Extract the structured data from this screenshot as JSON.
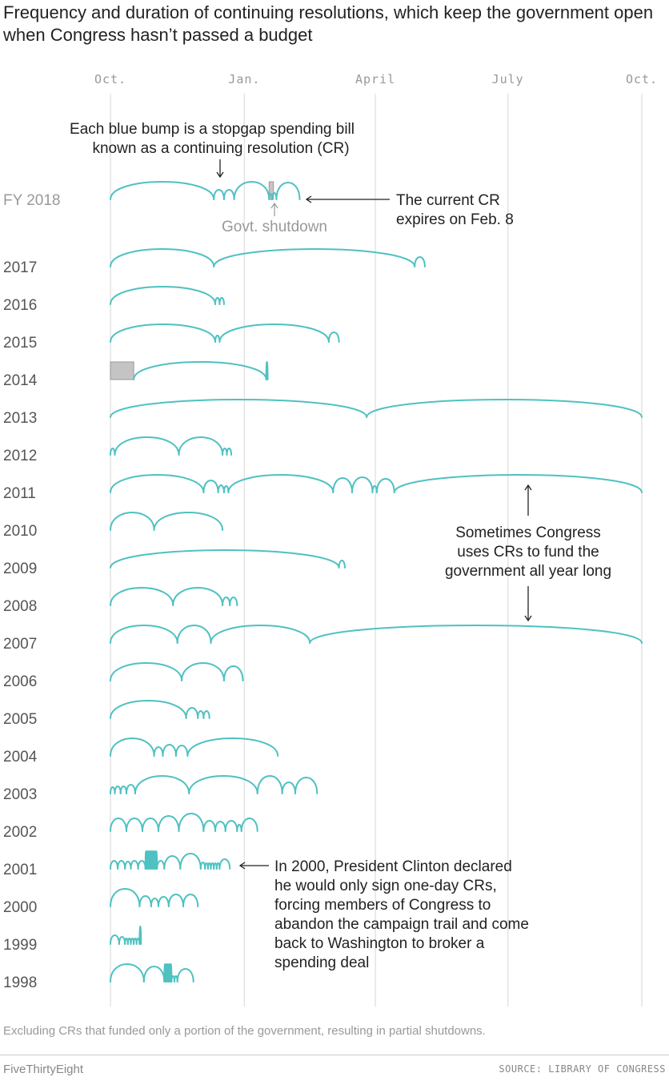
{
  "title": "Frequency and duration of continuing resolutions, which keep the government open when Congress hasn’t passed a budget",
  "footnote": "Excluding CRs that funded only a portion of the government, resulting in partial shutdowns.",
  "brand": "FiveThirtyEight",
  "source": "SOURCE: LIBRARY OF CONGRESS",
  "chart_data": {
    "type": "timeline-arcs",
    "unit": "days since Oct. 1 (start of fiscal year)",
    "xlim": [
      0,
      365
    ],
    "x_ticks": [
      {
        "label": "Oct.",
        "day": 0
      },
      {
        "label": "Jan.",
        "day": 92
      },
      {
        "label": "April",
        "day": 182
      },
      {
        "label": "July",
        "day": 273
      },
      {
        "label": "Oct.",
        "day": 365
      }
    ],
    "colors": {
      "cr": "#4fc1c1",
      "shutdown": "#c4c4c4",
      "grid": "#e4e4e4"
    },
    "rows": [
      {
        "label": "FY 2018",
        "breaks": [
          0,
          71,
          78,
          85,
          109,
          111,
          114,
          130
        ],
        "shutdowns": [
          [
            109,
            112
          ]
        ]
      },
      {
        "label": "2017",
        "breaks": [
          0,
          71,
          209,
          216
        ]
      },
      {
        "label": "2016",
        "breaks": [
          0,
          72,
          75,
          78
        ]
      },
      {
        "label": "2015",
        "breaks": [
          0,
          72,
          75,
          150,
          157
        ]
      },
      {
        "label": "2014",
        "breaks": [
          16,
          107,
          108
        ],
        "shutdowns": [
          [
            0,
            16
          ]
        ]
      },
      {
        "label": "2013",
        "breaks": [
          0,
          176,
          365
        ]
      },
      {
        "label": "2012",
        "breaks": [
          0,
          3,
          47,
          77,
          80,
          83
        ]
      },
      {
        "label": "2011",
        "breaks": [
          0,
          64,
          74,
          78,
          81,
          153,
          166,
          180,
          183,
          195,
          365
        ]
      },
      {
        "label": "2010",
        "breaks": [
          0,
          30,
          77
        ]
      },
      {
        "label": "2009",
        "breaks": [
          0,
          157,
          161
        ]
      },
      {
        "label": "2008",
        "breaks": [
          0,
          43,
          77,
          82,
          87
        ]
      },
      {
        "label": "2007",
        "breaks": [
          0,
          46,
          69,
          137,
          365
        ]
      },
      {
        "label": "2006",
        "breaks": [
          0,
          49,
          78,
          91
        ]
      },
      {
        "label": "2005",
        "breaks": [
          0,
          52,
          60,
          64,
          68
        ]
      },
      {
        "label": "2004",
        "breaks": [
          0,
          30,
          36,
          45,
          53,
          115
        ]
      },
      {
        "label": "2003",
        "breaks": [
          0,
          3,
          7,
          11,
          17,
          54,
          101,
          118,
          127,
          142
        ]
      },
      {
        "label": "2002",
        "breaks": [
          0,
          11,
          22,
          33,
          47,
          64,
          72,
          79,
          87,
          90,
          101
        ]
      },
      {
        "label": "2001",
        "breaks": [
          0,
          5,
          10,
          14,
          19,
          24,
          25,
          26,
          27,
          28,
          29,
          30,
          31,
          32,
          37,
          48,
          62,
          65,
          67,
          69,
          71,
          73,
          75,
          82
        ]
      },
      {
        "label": "2000",
        "breaks": [
          0,
          20,
          28,
          33,
          40,
          50,
          60
        ]
      },
      {
        "label": "1999",
        "breaks": [
          0,
          6,
          10,
          12,
          14,
          16,
          18,
          20,
          21
        ]
      },
      {
        "label": "1998",
        "breaks": [
          0,
          23,
          37,
          38,
          39,
          40,
          41,
          42,
          44,
          46,
          57
        ]
      }
    ],
    "annotations": {
      "bump_note": [
        "Each blue bump is a stopgap spending bill",
        "known as a continuing resolution (CR)"
      ],
      "shutdown_note": "Govt. shutdown",
      "current_note": [
        "The current CR",
        "expires on Feb. 8"
      ],
      "yearlong_note": [
        "Sometimes Congress",
        "uses CRs to fund the",
        "government all year long"
      ],
      "clinton_note": [
        "In 2000, President Clinton declared",
        "he would only sign one-day CRs,",
        "forcing members of Congress to",
        "abandon the campaign trail and come",
        "back to Washington to broker a",
        "spending deal"
      ]
    }
  }
}
